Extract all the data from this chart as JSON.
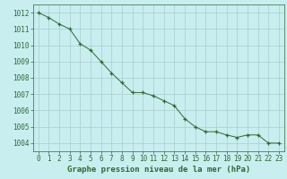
{
  "x": [
    0,
    1,
    2,
    3,
    4,
    5,
    6,
    7,
    8,
    9,
    10,
    11,
    12,
    13,
    14,
    15,
    16,
    17,
    18,
    19,
    20,
    21,
    22,
    23
  ],
  "y": [
    1012.0,
    1011.7,
    1011.3,
    1011.0,
    1010.1,
    1009.7,
    1009.0,
    1008.3,
    1007.7,
    1007.1,
    1007.1,
    1006.9,
    1006.6,
    1006.3,
    1005.5,
    1005.0,
    1004.7,
    1004.7,
    1004.5,
    1004.35,
    1004.5,
    1004.5,
    1004.0,
    1004.0
  ],
  "line_color": "#2d6a2d",
  "marker": "+",
  "background_color": "#c8eef0",
  "grid_color": "#aacccc",
  "xlabel": "Graphe pression niveau de la mer (hPa)",
  "xlabel_fontsize": 6.5,
  "ylabel_ticks": [
    1004,
    1005,
    1006,
    1007,
    1008,
    1009,
    1010,
    1011,
    1012
  ],
  "xticks": [
    0,
    1,
    2,
    3,
    4,
    5,
    6,
    7,
    8,
    9,
    10,
    11,
    12,
    13,
    14,
    15,
    16,
    17,
    18,
    19,
    20,
    21,
    22,
    23
  ],
  "ylim": [
    1003.5,
    1012.5
  ],
  "xlim": [
    -0.5,
    23.5
  ],
  "tick_color": "#2d6a2d",
  "tick_fontsize": 5.5,
  "label_color": "#2d6a2d"
}
